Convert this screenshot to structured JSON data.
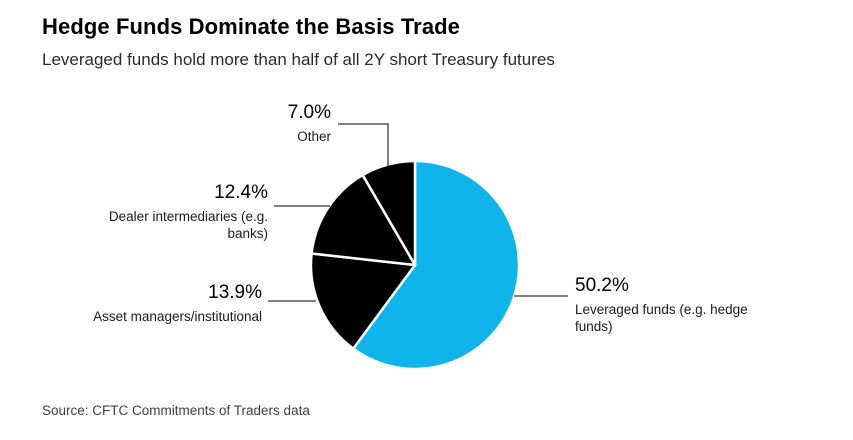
{
  "header": {
    "title": "Hedge Funds Dominate the Basis Trade",
    "subtitle": "Leveraged funds hold more than half of all 2Y short Treasury futures"
  },
  "source": "Source: CFTC Commitments of Traders data",
  "colors": {
    "accent_blue": "#0fb4ea",
    "slice_black": "#000000",
    "background": "#ffffff",
    "leader_line": "#000000"
  },
  "chart_data": {
    "type": "pie",
    "title": "Hedge Funds Dominate the Basis Trade",
    "subtitle": "Leveraged funds hold more than half of all 2Y short Treasury futures",
    "source": "Source: CFTC Commitments of Traders data",
    "legend_position": "none",
    "label_style": "leader-line callouts",
    "start_angle_deg": 0,
    "direction": "clockwise",
    "slices": [
      {
        "key": "leveraged",
        "label": "Leveraged funds (e.g. hedge funds)",
        "value": 50.2,
        "display": "50.2%",
        "color": "#0fb4ea"
      },
      {
        "key": "asset-managers",
        "label": "Asset managers/institutional",
        "value": 13.9,
        "display": "13.9%",
        "color": "#000000"
      },
      {
        "key": "dealer",
        "label": "Dealer intermediaries (e.g. banks)",
        "value": 12.4,
        "display": "12.4%",
        "color": "#000000"
      },
      {
        "key": "other",
        "label": "Other",
        "value": 7.0,
        "display": "7.0%",
        "color": "#000000"
      }
    ]
  }
}
